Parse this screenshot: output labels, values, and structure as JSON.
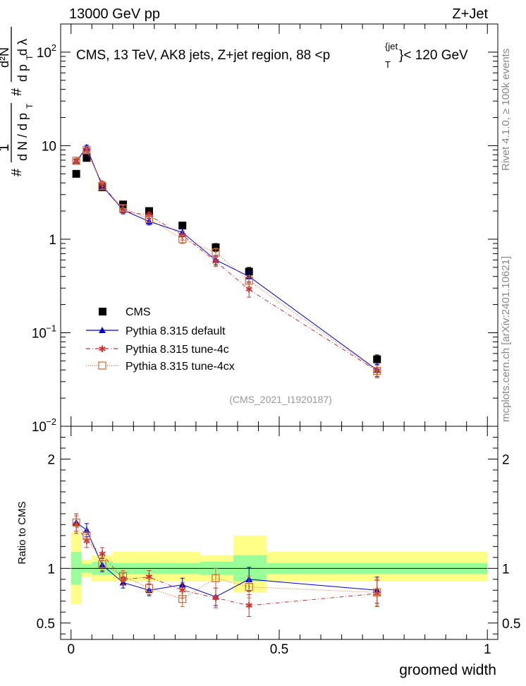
{
  "header": {
    "left": "13000 GeV pp",
    "right": "Z+Jet"
  },
  "colors": {
    "cms": "#000000",
    "default": "#0000cc",
    "tune4c": "#cc3333",
    "tune4cx": "#cc6633",
    "band_inner": "#99ff99",
    "band_outer": "#ffff88",
    "side_text": "#888888"
  },
  "side_labels": {
    "rivet": "Rivet 4.1.0, ≥ 100k events",
    "mcplots": "mcplots.cern.ch [arXiv:2401.10621]"
  },
  "chart_data": [
    {
      "type": "scatter",
      "title_main": "CMS, 13 TeV, AK8 jets, Z+jet region, 88 <p",
      "title_sup": "{jet",
      "title_sub": "T",
      "title_tail": "}< 120 GeV",
      "ylabel": "1/N dN/dp_T d²N/dp_T dλ",
      "ylabel_parts": {
        "num1": "1",
        "den1": "d N / d p",
        "den1_sub": "T",
        "num2": "d²N",
        "den2": "d p",
        "den2_sub": "T",
        "den2_tail": " d λ"
      },
      "yscale": "log",
      "ylim": [
        0.01,
        200
      ],
      "xlim": [
        -0.025,
        1.025
      ],
      "y_ticks": [
        {
          "value": 0.01,
          "label": "10",
          "exp": "−2"
        },
        {
          "value": 0.1,
          "label": "10",
          "exp": "−1"
        },
        {
          "value": 1,
          "label": "1",
          "exp": ""
        },
        {
          "value": 10,
          "label": "10",
          "exp": ""
        },
        {
          "value": 100,
          "label": "10",
          "exp": "2"
        }
      ],
      "watermark": "(CMS_2021_I1920187)",
      "legend_position": "lower-left",
      "series": [
        {
          "key": "cms",
          "name": "CMS",
          "marker": "square",
          "line": "none",
          "x": [
            0.0125,
            0.0375,
            0.075,
            0.125,
            0.1875,
            0.2675,
            0.3475,
            0.4275,
            0.735
          ],
          "y": [
            5.0,
            7.4,
            3.6,
            2.35,
            2.0,
            1.4,
            0.82,
            0.45,
            0.052
          ],
          "err": [
            0.3,
            0.4,
            0.2,
            0.15,
            0.12,
            0.1,
            0.08,
            0.05,
            0.006
          ]
        },
        {
          "key": "default",
          "name": "Pythia 8.315 default",
          "marker": "triangle",
          "line": "solid",
          "x": [
            0.0125,
            0.0375,
            0.075,
            0.125,
            0.1875,
            0.2675,
            0.3475,
            0.4275,
            0.735
          ],
          "y": [
            6.8,
            9.6,
            3.7,
            2.05,
            1.55,
            1.18,
            0.6,
            0.4,
            0.04
          ],
          "err": [
            0.4,
            0.5,
            0.25,
            0.15,
            0.13,
            0.12,
            0.07,
            0.05,
            0.006
          ]
        },
        {
          "key": "tune4c",
          "name": "Pythia 8.315 tune-4c",
          "marker": "star",
          "line": "dashdot",
          "x": [
            0.0125,
            0.0375,
            0.075,
            0.125,
            0.1875,
            0.2675,
            0.3475,
            0.4275,
            0.735
          ],
          "y": [
            6.8,
            9.0,
            3.9,
            2.0,
            1.8,
            1.1,
            0.58,
            0.29,
            0.039
          ],
          "err": [
            0.4,
            0.5,
            0.25,
            0.15,
            0.15,
            0.12,
            0.07,
            0.05,
            0.006
          ]
        },
        {
          "key": "tune4cx",
          "name": "Pythia 8.315 tune-4cx",
          "marker": "opensquare",
          "line": "dotted",
          "x": [
            0.0125,
            0.0375,
            0.075,
            0.125,
            0.1875,
            0.2675,
            0.3475,
            0.4275,
            0.735
          ],
          "y": [
            6.9,
            9.0,
            3.7,
            2.15,
            1.65,
            1.0,
            0.72,
            0.36,
            0.039
          ],
          "err": [
            0.4,
            0.5,
            0.25,
            0.15,
            0.13,
            0.1,
            0.08,
            0.05,
            0.006
          ]
        }
      ]
    },
    {
      "type": "scatter",
      "ylabel": "Ratio to CMS",
      "xlabel": "groomed width",
      "ylim": [
        0.35,
        2.3
      ],
      "xlim": [
        -0.025,
        1.025
      ],
      "y_ticks": [
        {
          "value": 0.5,
          "label": "0.5"
        },
        {
          "value": 1,
          "label": "1"
        },
        {
          "value": 2,
          "label": "2"
        }
      ],
      "x_ticks": [
        {
          "value": 0,
          "label": "0"
        },
        {
          "value": 0.5,
          "label": "0.5"
        },
        {
          "value": 1,
          "label": "1"
        }
      ],
      "bands": [
        {
          "x0": 0.0,
          "x1": 0.025,
          "inner": [
            0.85,
            1.15
          ],
          "outer": [
            0.67,
            1.33
          ]
        },
        {
          "x0": 0.025,
          "x1": 0.05,
          "inner": [
            0.96,
            1.04
          ],
          "outer": [
            0.92,
            1.08
          ]
        },
        {
          "x0": 0.05,
          "x1": 0.1,
          "inner": [
            0.94,
            1.06
          ],
          "outer": [
            0.88,
            1.12
          ]
        },
        {
          "x0": 0.1,
          "x1": 0.15,
          "inner": [
            0.95,
            1.05
          ],
          "outer": [
            0.88,
            1.15
          ]
        },
        {
          "x0": 0.15,
          "x1": 0.225,
          "inner": [
            0.95,
            1.05
          ],
          "outer": [
            0.88,
            1.15
          ]
        },
        {
          "x0": 0.225,
          "x1": 0.31,
          "inner": [
            0.95,
            1.05
          ],
          "outer": [
            0.88,
            1.15
          ]
        },
        {
          "x0": 0.31,
          "x1": 0.39,
          "inner": [
            0.94,
            1.06
          ],
          "outer": [
            0.88,
            1.12
          ]
        },
        {
          "x0": 0.39,
          "x1": 0.47,
          "inner": [
            0.88,
            1.12
          ],
          "outer": [
            0.78,
            1.3
          ]
        },
        {
          "x0": 0.47,
          "x1": 1.0,
          "inner": [
            0.95,
            1.05
          ],
          "outer": [
            0.88,
            1.15
          ]
        }
      ],
      "series": [
        {
          "key": "default",
          "x": [
            0.0125,
            0.0375,
            0.075,
            0.125,
            0.1875,
            0.2675,
            0.3475,
            0.4275,
            0.735
          ],
          "y": [
            1.42,
            1.35,
            1.03,
            0.87,
            0.8,
            0.85,
            0.74,
            0.9,
            0.8
          ],
          "err": [
            0.08,
            0.06,
            0.06,
            0.05,
            0.05,
            0.06,
            0.08,
            0.11,
            0.12
          ]
        },
        {
          "key": "tune4c",
          "x": [
            0.0125,
            0.0375,
            0.075,
            0.125,
            0.1875,
            0.2675,
            0.3475,
            0.4275,
            0.735
          ],
          "y": [
            1.4,
            1.25,
            1.13,
            0.9,
            0.92,
            0.8,
            0.73,
            0.66,
            0.77
          ],
          "err": [
            0.08,
            0.06,
            0.06,
            0.05,
            0.06,
            0.07,
            0.09,
            0.1,
            0.12
          ]
        },
        {
          "key": "tune4cx",
          "x": [
            0.0125,
            0.0375,
            0.075,
            0.125,
            0.1875,
            0.2675,
            0.3475,
            0.4275,
            0.735
          ],
          "y": [
            1.42,
            1.3,
            1.04,
            0.93,
            0.82,
            0.72,
            0.91,
            0.83,
            0.78
          ],
          "err": [
            0.08,
            0.06,
            0.06,
            0.05,
            0.06,
            0.07,
            0.09,
            0.1,
            0.12
          ]
        }
      ]
    }
  ]
}
